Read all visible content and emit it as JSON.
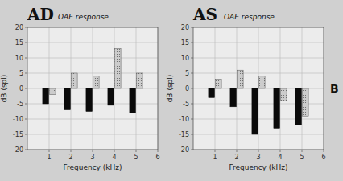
{
  "chart_data": [
    {
      "type": "bar",
      "title": "AD",
      "subtitle": "OAE response",
      "x": [
        1,
        2,
        3,
        4,
        5
      ],
      "series": [
        {
          "color": "#0a0a0a",
          "values": [
            -5,
            -7,
            -7.5,
            -5.5,
            -8
          ]
        },
        {
          "color": "#cccccc",
          "values": [
            -2,
            5,
            4,
            13,
            5
          ]
        }
      ],
      "x_label": "Frequency (kHz)",
      "y_label": "dB (spl)",
      "xlim": [
        0,
        6
      ],
      "xticks": [
        1,
        2,
        3,
        4,
        5,
        6
      ],
      "ylim": [
        -20,
        20
      ],
      "yticks": [
        -20,
        -15,
        -10,
        -5,
        0,
        5,
        10,
        15,
        20
      ],
      "grid": true
    },
    {
      "type": "bar",
      "title": "AS",
      "subtitle": "OAE response",
      "x": [
        1,
        2,
        3,
        4,
        5
      ],
      "series": [
        {
          "color": "#0a0a0a",
          "values": [
            -3,
            -6,
            -15,
            -13,
            -12
          ]
        },
        {
          "color": "#cccccc",
          "values": [
            3,
            6,
            4,
            -4,
            -9
          ]
        }
      ],
      "x_label": "Frequency (kHz)",
      "y_label": "dB (spl)",
      "xlim": [
        0,
        6
      ],
      "xticks": [
        1,
        2,
        3,
        4,
        5,
        6
      ],
      "ylim": [
        -20,
        20
      ],
      "yticks": [
        -20,
        -15,
        -10,
        -5,
        0,
        5,
        10,
        15,
        20
      ],
      "grid": true,
      "annotation": "B"
    }
  ]
}
